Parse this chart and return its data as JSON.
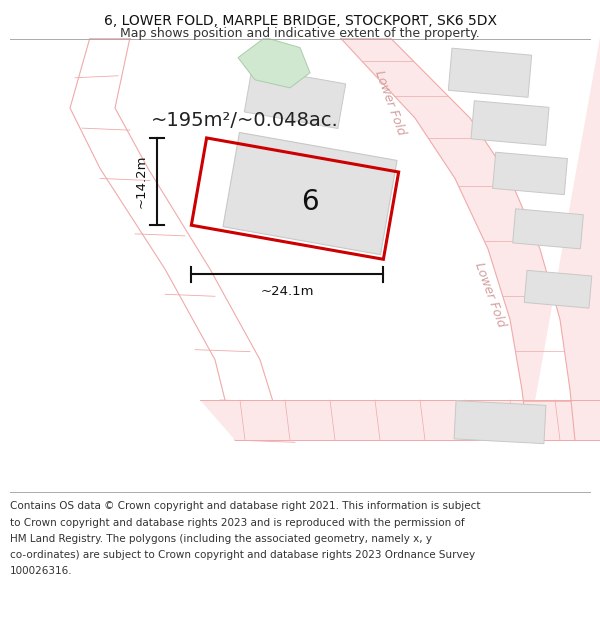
{
  "title_line1": "6, LOWER FOLD, MARPLE BRIDGE, STOCKPORT, SK6 5DX",
  "title_line2": "Map shows position and indicative extent of the property.",
  "footer_text": "Contains OS data © Crown copyright and database right 2021. This information is subject to Crown copyright and database rights 2023 and is reproduced with the permission of HM Land Registry. The polygons (including the associated geometry, namely x, y co-ordinates) are subject to Crown copyright and database rights 2023 Ordnance Survey 100026316.",
  "area_text": "~195m²/~0.048ac.",
  "property_number": "6",
  "dim_width": "~24.1m",
  "dim_height": "~14.2m",
  "bg_color": "#ffffff",
  "road_line_color": "#f0aaaa",
  "road_fill_color": "#fce8e8",
  "building_fill": "#e2e2e2",
  "building_edge": "#c8c8c8",
  "green_fill": "#d0e8d0",
  "green_edge": "#aaccaa",
  "red_outline": "#cc0000",
  "road_label": "Lower Fold",
  "road_label_color": "#d4a0a0",
  "title_fontsize": 10,
  "subtitle_fontsize": 9,
  "footer_fontsize": 7.5,
  "area_fontsize": 14,
  "number_fontsize": 20,
  "dim_fontsize": 9.5
}
